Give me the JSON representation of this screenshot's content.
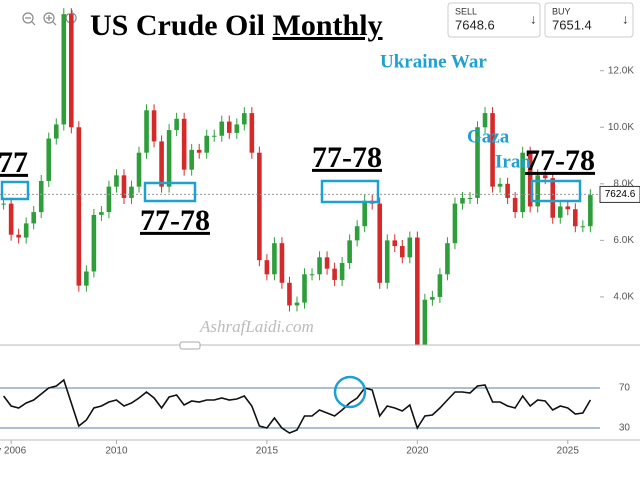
{
  "chart_data": {
    "type": "candlestick",
    "title": "US Crude Oil",
    "title_underlined": "Monthly",
    "quote": {
      "sell_label": "SELL",
      "sell": 7648.6,
      "buy_label": "BUY",
      "buy": 7651.4
    },
    "watermark": "AshrafLaidi.com",
    "last_price": 7624.6,
    "up_color": "#2e9e3a",
    "down_color": "#d62a2a",
    "x": [
      2006.25,
      2006.5,
      2006.75,
      2007,
      2007.25,
      2007.5,
      2007.75,
      2008,
      2008.25,
      2008.5,
      2008.75,
      2009,
      2009.25,
      2009.5,
      2009.75,
      2010,
      2010.25,
      2010.5,
      2010.75,
      2011,
      2011.25,
      2011.5,
      2011.75,
      2012,
      2012.25,
      2012.5,
      2012.75,
      2013,
      2013.25,
      2013.5,
      2013.75,
      2014,
      2014.25,
      2014.5,
      2014.75,
      2015,
      2015.25,
      2015.5,
      2015.75,
      2016,
      2016.25,
      2016.5,
      2016.75,
      2017,
      2017.25,
      2017.5,
      2017.75,
      2018,
      2018.25,
      2018.5,
      2018.75,
      2019,
      2019.25,
      2019.5,
      2019.75,
      2020,
      2020.25,
      2020.5,
      2020.75,
      2021,
      2021.25,
      2021.5,
      2021.75,
      2022,
      2022.25,
      2022.5,
      2022.75,
      2023,
      2023.25,
      2023.5,
      2023.75,
      2024,
      2024.25,
      2024.5,
      2024.75,
      2025,
      2025.25,
      2025.5,
      2025.75
    ],
    "close": [
      7300,
      6200,
      6100,
      6600,
      7000,
      8100,
      9600,
      10100,
      14000,
      10000,
      4400,
      4900,
      6900,
      7000,
      7900,
      8300,
      7500,
      7900,
      9100,
      10600,
      9500,
      7900,
      9900,
      10300,
      8500,
      9200,
      9100,
      9700,
      9700,
      10200,
      9800,
      10100,
      10500,
      9100,
      5300,
      4800,
      5900,
      4500,
      3700,
      3800,
      4800,
      4800,
      5400,
      5000,
      4600,
      5200,
      6000,
      6500,
      7400,
      7300,
      4500,
      6000,
      5800,
      5400,
      6100,
      2000,
      3900,
      4000,
      4800,
      5900,
      7300,
      7500,
      7500,
      10000,
      10500,
      7900,
      8000,
      7500,
      7000,
      9100,
      7200,
      8300,
      8200,
      6800,
      7200,
      7100,
      6500,
      6500,
      7600
    ],
    "rsi": [
      62,
      52,
      50,
      55,
      58,
      64,
      70,
      72,
      78,
      55,
      32,
      38,
      50,
      52,
      56,
      58,
      52,
      55,
      60,
      66,
      60,
      50,
      61,
      63,
      53,
      57,
      56,
      58,
      58,
      60,
      58,
      59,
      62,
      52,
      32,
      30,
      40,
      30,
      25,
      28,
      42,
      42,
      48,
      45,
      42,
      48,
      55,
      60,
      70,
      68,
      42,
      52,
      50,
      47,
      53,
      30,
      42,
      43,
      50,
      58,
      66,
      66,
      65,
      72,
      73,
      56,
      56,
      52,
      50,
      62,
      52,
      58,
      57,
      48,
      52,
      50,
      44,
      45,
      58
    ],
    "ylim": [
      2300,
      14500
    ],
    "yticks": [
      {
        "value": 4000,
        "label": "4.0K"
      },
      {
        "value": 6000,
        "label": "6.0K"
      },
      {
        "value": 8000,
        "label": "8.0K"
      },
      {
        "value": 10000,
        "label": "10.0K"
      },
      {
        "value": 12000,
        "label": "12.0K"
      }
    ],
    "rsi_ylim": [
      18,
      103
    ],
    "rsi_yticks": [
      30,
      70
    ],
    "xlim": [
      2006.13,
      2027.4
    ],
    "xticks": [
      {
        "value": 2006.5,
        "label": "y 2006"
      },
      2010,
      2015,
      2020,
      2025
    ],
    "annotations": [
      "77",
      "77-78",
      "77-78",
      "77-78",
      "Ukraine War",
      "Gaza",
      "Iran"
    ]
  }
}
